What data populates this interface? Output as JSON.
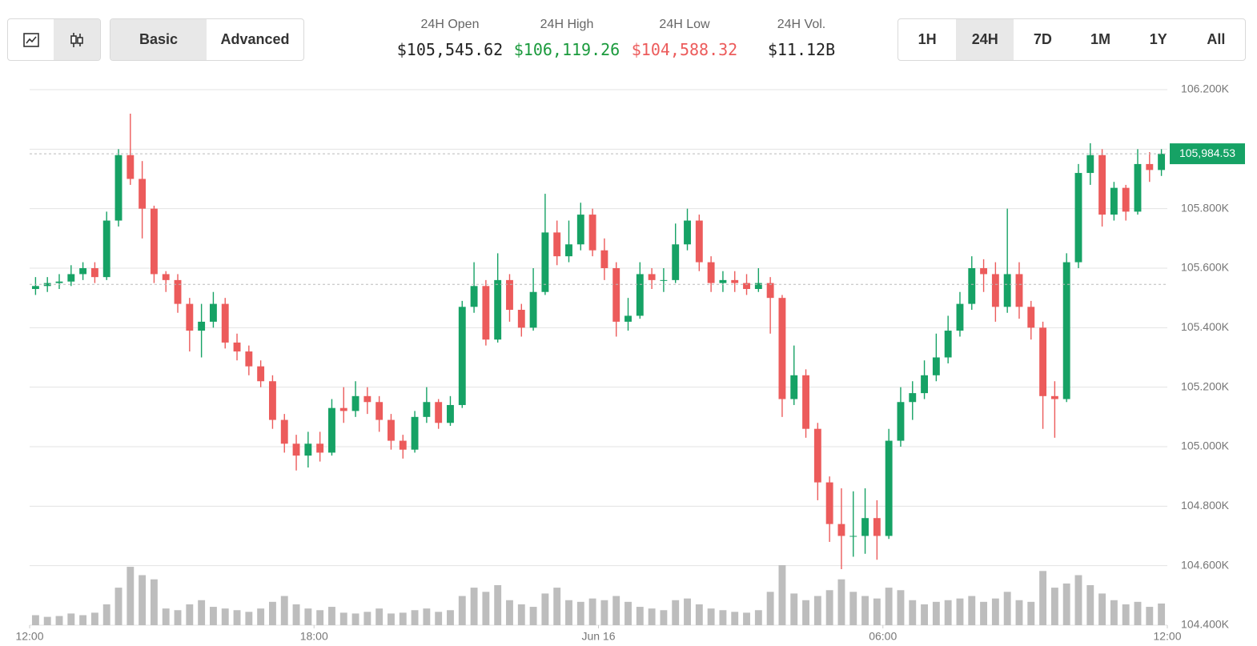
{
  "header": {
    "view_icons": [
      "line",
      "candles"
    ],
    "view_buttons": [
      {
        "label": "Basic",
        "selected": true
      },
      {
        "label": "Advanced",
        "selected": false
      }
    ],
    "stats": [
      {
        "label": "24H Open",
        "value": "$105,545.62",
        "color": "#222222"
      },
      {
        "label": "24H High",
        "value": "$106,119.26",
        "color": "#1a9a3c"
      },
      {
        "label": "24H Low",
        "value": "$104,588.32",
        "color": "#ec5b5b"
      },
      {
        "label": "24H Vol.",
        "value": "$11.12B",
        "color": "#222222"
      }
    ],
    "range_buttons": [
      {
        "label": "1H",
        "selected": false
      },
      {
        "label": "24H",
        "selected": true
      },
      {
        "label": "7D",
        "selected": false
      },
      {
        "label": "1M",
        "selected": false
      },
      {
        "label": "1Y",
        "selected": false
      },
      {
        "label": "All",
        "selected": false
      }
    ]
  },
  "chart_data": {
    "type": "candlestick",
    "up_color": "#16a265",
    "down_color": "#ec5b5b",
    "volume_color": "#bdbdbd",
    "grid": true,
    "xlim": [
      0,
      24
    ],
    "xticks": [
      {
        "value": 0,
        "label": "12:00"
      },
      {
        "value": 6,
        "label": "18:00"
      },
      {
        "value": 12,
        "label": "Jun 16"
      },
      {
        "value": 18,
        "label": "06:00"
      },
      {
        "value": 24,
        "label": "12:00"
      }
    ],
    "ylim": [
      104400,
      106200
    ],
    "yticks": [
      {
        "value": 104400,
        "label": "104.400K"
      },
      {
        "value": 104600,
        "label": "104.600K"
      },
      {
        "value": 104800,
        "label": "104.800K"
      },
      {
        "value": 105000,
        "label": "105.000K"
      },
      {
        "value": 105200,
        "label": "105.200K"
      },
      {
        "value": 105400,
        "label": "105.400K"
      },
      {
        "value": 105600,
        "label": "105.600K"
      },
      {
        "value": 105800,
        "label": "105.800K"
      },
      {
        "value": 106000,
        "label": "106.000K"
      },
      {
        "value": 106200,
        "label": "106.200K"
      }
    ],
    "open_price": 105545.62,
    "last_price": {
      "value": 105984.53,
      "label": "105,984.53"
    },
    "x": [
      0.125,
      0.375,
      0.625,
      0.875,
      1.125,
      1.375,
      1.625,
      1.875,
      2.125,
      2.375,
      2.625,
      2.875,
      3.125,
      3.375,
      3.625,
      3.875,
      4.125,
      4.375,
      4.625,
      4.875,
      5.125,
      5.375,
      5.625,
      5.875,
      6.125,
      6.375,
      6.625,
      6.875,
      7.125,
      7.375,
      7.625,
      7.875,
      8.125,
      8.375,
      8.625,
      8.875,
      9.125,
      9.375,
      9.625,
      9.875,
      10.125,
      10.375,
      10.625,
      10.875,
      11.125,
      11.375,
      11.625,
      11.875,
      12.125,
      12.375,
      12.625,
      12.875,
      13.125,
      13.375,
      13.625,
      13.875,
      14.125,
      14.375,
      14.625,
      14.875,
      15.125,
      15.375,
      15.625,
      15.875,
      16.125,
      16.375,
      16.625,
      16.875,
      17.125,
      17.375,
      17.625,
      17.875,
      18.125,
      18.375,
      18.625,
      18.875,
      19.125,
      19.375,
      19.625,
      19.875,
      20.125,
      20.375,
      20.625,
      20.875,
      21.125,
      21.375,
      21.625,
      21.875,
      22.125,
      22.375,
      22.625,
      22.875,
      23.125,
      23.375,
      23.625,
      23.875
    ],
    "open": [
      105530,
      105540,
      105550,
      105555,
      105580,
      105600,
      105570,
      105760,
      105980,
      105900,
      105800,
      105580,
      105560,
      105480,
      105390,
      105420,
      105480,
      105350,
      105320,
      105270,
      105220,
      105090,
      105010,
      104970,
      105010,
      104980,
      105130,
      105120,
      105170,
      105150,
      105090,
      105020,
      104990,
      105100,
      105150,
      105080,
      105140,
      105470,
      105540,
      105360,
      105560,
      105460,
      105400,
      105520,
      105720,
      105640,
      105680,
      105780,
      105660,
      105600,
      105420,
      105440,
      105580,
      105560,
      105560,
      105680,
      105760,
      105620,
      105550,
      105560,
      105550,
      105530,
      105550,
      105500,
      105160,
      105240,
      105060,
      104880,
      104740,
      104700,
      104700,
      104760,
      104700,
      105020,
      105150,
      105180,
      105240,
      105300,
      105390,
      105480,
      105600,
      105580,
      105470,
      105580,
      105470,
      105400,
      105170,
      105160,
      105620,
      105920,
      105980,
      105780,
      105870,
      105790,
      105950,
      105930
    ],
    "high": [
      105570,
      105570,
      105580,
      105610,
      105620,
      105620,
      105790,
      106000,
      106119.26,
      105960,
      105810,
      105590,
      105580,
      105500,
      105480,
      105520,
      105500,
      105380,
      105340,
      105290,
      105240,
      105110,
      105040,
      105050,
      105050,
      105160,
      105200,
      105220,
      105200,
      105170,
      105110,
      105040,
      105120,
      105200,
      105160,
      105170,
      105490,
      105620,
      105560,
      105650,
      105580,
      105480,
      105600,
      105850,
      105760,
      105760,
      105820,
      105800,
      105700,
      105620,
      105500,
      105620,
      105600,
      105600,
      105750,
      105800,
      105780,
      105640,
      105590,
      105590,
      105580,
      105600,
      105570,
      105510,
      105340,
      105260,
      105080,
      104900,
      104860,
      104850,
      104860,
      104820,
      105060,
      105200,
      105220,
      105290,
      105380,
      105440,
      105520,
      105640,
      105630,
      105620,
      105800,
      105620,
      105490,
      105420,
      105220,
      105650,
      105950,
      106020,
      106000,
      105890,
      105880,
      106000,
      105990,
      106000
    ],
    "low": [
      105510,
      105520,
      105530,
      105540,
      105560,
      105550,
      105560,
      105740,
      105880,
      105700,
      105550,
      105520,
      105450,
      105320,
      105300,
      105400,
      105330,
      105290,
      105240,
      105200,
      105060,
      104980,
      104920,
      104930,
      104950,
      104970,
      105080,
      105100,
      105110,
      105050,
      104990,
      104960,
      104980,
      105080,
      105060,
      105070,
      105130,
      105450,
      105340,
      105350,
      105420,
      105370,
      105390,
      105510,
      105610,
      105620,
      105660,
      105640,
      105560,
      105370,
      105390,
      105430,
      105530,
      105520,
      105550,
      105660,
      105590,
      105520,
      105520,
      105520,
      105510,
      105520,
      105380,
      105100,
      105140,
      105030,
      104820,
      104680,
      104588.32,
      104630,
      104640,
      104620,
      104690,
      105000,
      105090,
      105160,
      105220,
      105280,
      105370,
      105460,
      105520,
      105420,
      105450,
      105430,
      105360,
      105060,
      105030,
      105150,
      105600,
      105880,
      105740,
      105760,
      105760,
      105780,
      105890,
      105910
    ],
    "close": [
      105540,
      105550,
      105555,
      105580,
      105600,
      105570,
      105760,
      105980,
      105900,
      105800,
      105580,
      105560,
      105480,
      105390,
      105420,
      105480,
      105350,
      105320,
      105270,
      105220,
      105090,
      105010,
      104970,
      105010,
      104980,
      105130,
      105120,
      105170,
      105150,
      105090,
      105020,
      104990,
      105100,
      105150,
      105080,
      105140,
      105470,
      105540,
      105360,
      105560,
      105460,
      105400,
      105520,
      105720,
      105640,
      105680,
      105780,
      105660,
      105600,
      105420,
      105440,
      105580,
      105560,
      105560,
      105680,
      105760,
      105620,
      105550,
      105560,
      105550,
      105530,
      105550,
      105500,
      105160,
      105240,
      105060,
      104880,
      104740,
      104700,
      104700,
      104760,
      104700,
      105020,
      105150,
      105180,
      105240,
      105300,
      105390,
      105480,
      105600,
      105580,
      105470,
      105580,
      105470,
      105400,
      105170,
      105160,
      105620,
      105920,
      105980,
      105780,
      105870,
      105790,
      105950,
      105930,
      105984.53
    ],
    "volume": [
      12,
      10,
      11,
      14,
      12,
      15,
      25,
      45,
      70,
      60,
      55,
      20,
      18,
      25,
      30,
      22,
      20,
      18,
      16,
      20,
      28,
      35,
      25,
      20,
      18,
      22,
      15,
      14,
      16,
      20,
      14,
      15,
      18,
      20,
      16,
      18,
      35,
      45,
      40,
      48,
      30,
      25,
      22,
      38,
      45,
      30,
      28,
      32,
      30,
      35,
      28,
      22,
      20,
      18,
      30,
      32,
      25,
      20,
      18,
      16,
      15,
      18,
      40,
      72,
      38,
      30,
      35,
      42,
      55,
      40,
      35,
      32,
      45,
      42,
      30,
      25,
      28,
      30,
      32,
      35,
      28,
      32,
      40,
      30,
      28,
      65,
      45,
      50,
      60,
      48,
      38,
      30,
      25,
      28,
      22,
      26
    ]
  }
}
